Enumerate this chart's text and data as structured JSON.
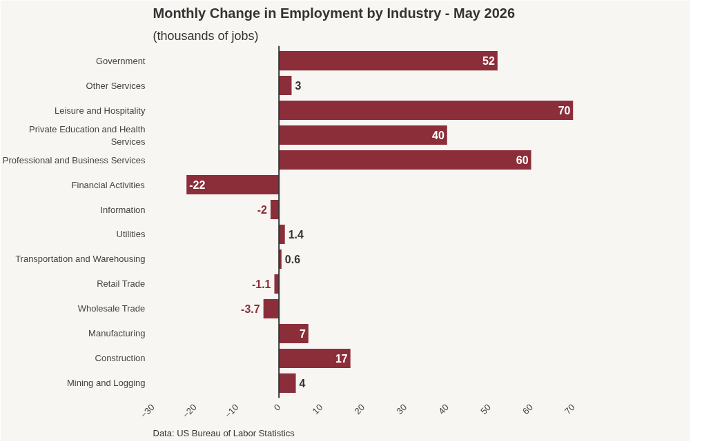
{
  "chart_data": {
    "type": "bar",
    "orientation": "horizontal",
    "title": "Monthly Change in Employment by Industry - May 2026",
    "subtitle": "(thousands of jobs)",
    "categories": [
      "Government",
      "Other Services",
      "Leisure and Hospitality",
      "Private Education and Health Services",
      "Professional and Business Services",
      "Financial Activities",
      "Information",
      "Utilities",
      "Transportation and Warehousing",
      "Retail Trade",
      "Wholesale Trade",
      "Manufacturing",
      "Construction",
      "Mining and Logging"
    ],
    "values": [
      52,
      3,
      70,
      40,
      60,
      -22,
      -2,
      1.4,
      0.6,
      -1.1,
      -3.7,
      7,
      17,
      4
    ],
    "color": "#8b2e3a",
    "data_labels": true,
    "xlim": [
      -30,
      70
    ],
    "xticks": [
      -30,
      -20,
      -10,
      0,
      10,
      20,
      30,
      40,
      50,
      60,
      70
    ],
    "grid": false,
    "ref_lines": [
      {
        "axis": "x",
        "value": 0,
        "color": "#333333"
      }
    ],
    "annotations": [
      "Data: US Bureau of Labor Statistics"
    ]
  }
}
